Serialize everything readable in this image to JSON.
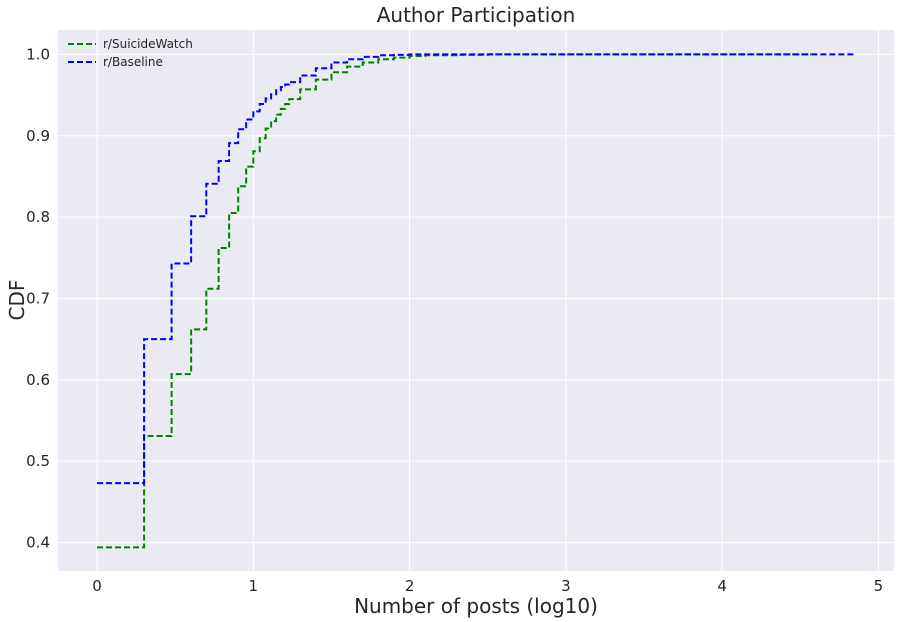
{
  "chart_data": {
    "type": "line",
    "title": "Author Participation",
    "xlabel": "Number of posts (log10)",
    "ylabel": "CDF",
    "xlim": [
      -0.25,
      5.1
    ],
    "ylim": [
      0.365,
      1.03
    ],
    "xticks": [
      0,
      1,
      2,
      3,
      4,
      5
    ],
    "yticks": [
      0.4,
      0.5,
      0.6,
      0.7,
      0.8,
      0.9,
      1.0
    ],
    "grid": true,
    "legend_position": "top-left",
    "line_style": "dashed-step",
    "series": [
      {
        "name": "r/SuicideWatch",
        "color": "#008000",
        "x": [
          0,
          0.301,
          0.477,
          0.602,
          0.699,
          0.778,
          0.845,
          0.903,
          0.954,
          1.0,
          1.041,
          1.079,
          1.114,
          1.146,
          1.176,
          1.204,
          1.23,
          1.3,
          1.4,
          1.5,
          1.6,
          1.7,
          1.8,
          1.9,
          2.0,
          2.1,
          2.3,
          2.5,
          3.0,
          4.0,
          4.57
        ],
        "y": [
          0.394,
          0.531,
          0.607,
          0.662,
          0.712,
          0.762,
          0.805,
          0.838,
          0.862,
          0.881,
          0.897,
          0.909,
          0.918,
          0.926,
          0.933,
          0.939,
          0.945,
          0.957,
          0.969,
          0.978,
          0.985,
          0.99,
          0.994,
          0.996,
          0.998,
          0.999,
          0.9995,
          1.0,
          1.0,
          1.0,
          1.0
        ]
      },
      {
        "name": "r/Baseline",
        "color": "#0000ff",
        "x": [
          0,
          0.301,
          0.477,
          0.602,
          0.699,
          0.778,
          0.845,
          0.903,
          0.954,
          1.0,
          1.041,
          1.079,
          1.114,
          1.146,
          1.176,
          1.204,
          1.23,
          1.3,
          1.4,
          1.5,
          1.6,
          1.7,
          1.8,
          1.9,
          2.0,
          2.2,
          2.5,
          3.0,
          4.0,
          4.85
        ],
        "y": [
          0.473,
          0.65,
          0.743,
          0.801,
          0.841,
          0.869,
          0.891,
          0.908,
          0.92,
          0.93,
          0.939,
          0.946,
          0.951,
          0.956,
          0.96,
          0.963,
          0.966,
          0.974,
          0.983,
          0.99,
          0.994,
          0.997,
          0.999,
          0.9995,
          1.0,
          1.0,
          1.0,
          1.0,
          1.0,
          1.0
        ]
      }
    ]
  }
}
